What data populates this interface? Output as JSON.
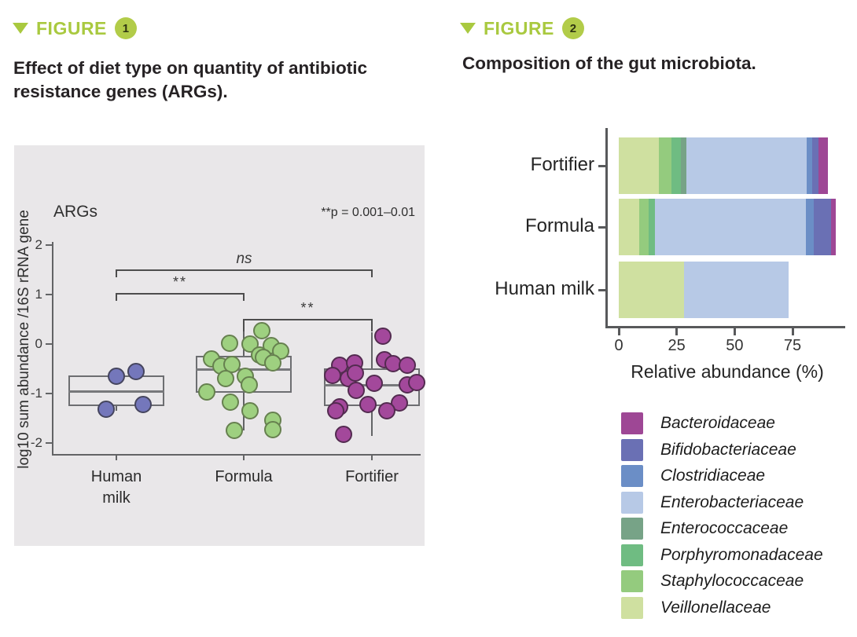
{
  "colors": {
    "accent_green": "#a9c93f",
    "panel_background": "#e9e7e9"
  },
  "figure1": {
    "header": {
      "label": "FIGURE",
      "number": "1"
    },
    "title": "Effect of diet type on quantity of antibiotic resistance genes (ARGs)."
  },
  "figure2": {
    "header": {
      "label": "FIGURE",
      "number": "2"
    },
    "title": "Composition of the gut microbiota."
  },
  "chart_data": [
    {
      "type": "box-scatter",
      "title": "ARGs",
      "ylabel": "log10 sum abundance /16S rRNA gene",
      "annotation": "**p = 0.001–0.01",
      "ylim": [
        -2.3,
        2.3
      ],
      "yticks": [
        2,
        1,
        0,
        -1,
        -2
      ],
      "groups": [
        {
          "label": "Human milk",
          "label_display": "Human\nmilk",
          "color": "#7477bb",
          "stroke": "#45455e",
          "box": {
            "q1": -1.25,
            "median": -0.95,
            "q3": -0.63,
            "whisker_low": -1.35,
            "whisker_high": -0.63
          },
          "points": [
            [
              0,
              -0.65
            ],
            [
              25,
              -0.56
            ],
            [
              -13,
              -1.32
            ],
            [
              34,
              -1.22
            ]
          ]
        },
        {
          "label": "Formula",
          "label_display": "Formula",
          "color": "#9ed080",
          "stroke": "#66804f",
          "box": {
            "q1": -0.98,
            "median": -0.51,
            "q3": -0.24,
            "whisker_low": -1.74,
            "whisker_high": 0.29
          },
          "points": [
            [
              23,
              0.27
            ],
            [
              8,
              0.0
            ],
            [
              -18,
              0.02
            ],
            [
              35,
              -0.03
            ],
            [
              20,
              -0.22
            ],
            [
              47,
              -0.14
            ],
            [
              -41,
              -0.3
            ],
            [
              -29,
              -0.44
            ],
            [
              -15,
              -0.41
            ],
            [
              25,
              -0.27
            ],
            [
              37,
              -0.38
            ],
            [
              2,
              -0.65
            ],
            [
              -23,
              -0.7
            ],
            [
              7,
              -0.83
            ],
            [
              -47,
              -0.97
            ],
            [
              -17,
              -1.17
            ],
            [
              8,
              -1.35
            ],
            [
              37,
              -1.54
            ],
            [
              37,
              -1.73
            ],
            [
              -12,
              -1.75
            ]
          ]
        },
        {
          "label": "Fortifier",
          "label_display": "Fortifier",
          "color": "#a3489b",
          "stroke": "#532b50",
          "box": {
            "q1": -1.25,
            "median": -0.83,
            "q3": -0.49,
            "whisker_low": -1.86,
            "whisker_high": 0.24
          },
          "points": [
            [
              14,
              0.16
            ],
            [
              16,
              -0.32
            ],
            [
              27,
              -0.4
            ],
            [
              45,
              -0.43
            ],
            [
              -41,
              -0.43
            ],
            [
              -22,
              -0.38
            ],
            [
              -50,
              -0.63
            ],
            [
              -30,
              -0.7
            ],
            [
              -21,
              -0.59
            ],
            [
              3,
              -0.79
            ],
            [
              -20,
              -0.94
            ],
            [
              45,
              -0.83
            ],
            [
              57,
              -0.78
            ],
            [
              -5,
              -1.22
            ],
            [
              35,
              -1.19
            ],
            [
              19,
              -1.35
            ],
            [
              -41,
              -1.27
            ],
            [
              -46,
              -1.35
            ],
            [
              -36,
              -1.83
            ]
          ]
        }
      ],
      "significance": [
        {
          "from_index": 0,
          "to_index": 2,
          "label": "ns"
        },
        {
          "from_index": 0,
          "to_index": 1,
          "label": "**"
        },
        {
          "from_index": 1,
          "to_index": 2,
          "label": "**"
        }
      ]
    },
    {
      "type": "stacked-bar-horizontal",
      "categories": [
        "Fortifier",
        "Formula",
        "Human milk"
      ],
      "xlabel": "Relative abundance (%)",
      "xticks": [
        0,
        25,
        50,
        75
      ],
      "xlim": [
        0,
        100
      ],
      "series": [
        {
          "name": "Veillonellaceae",
          "color": "#cfe0a0",
          "values": [
            17.3,
            8.8,
            28.2
          ]
        },
        {
          "name": "Staphylococcaceae",
          "color": "#94cb7e",
          "values": [
            5.4,
            4.1,
            0
          ]
        },
        {
          "name": "Porphyromonadaceae",
          "color": "#6fbc82",
          "values": [
            4.1,
            2.7,
            0
          ]
        },
        {
          "name": "Enterococcaceae",
          "color": "#77a387",
          "values": [
            2.4,
            0,
            0
          ]
        },
        {
          "name": "Enterobacteriaceae",
          "color": "#b7c9e6",
          "values": [
            51.8,
            65.1,
            45.1
          ]
        },
        {
          "name": "Clostridiaceae",
          "color": "#6b8ec6",
          "values": [
            2.4,
            3.4,
            0
          ]
        },
        {
          "name": "Bifidobacteriaceae",
          "color": "#6a70b4",
          "values": [
            2.8,
            7.5,
            0
          ]
        },
        {
          "name": "Bacteroidaceae",
          "color": "#9e4795",
          "values": [
            4.2,
            2.0,
            0
          ]
        }
      ],
      "legend_order": [
        "Bacteroidaceae",
        "Bifidobacteriaceae",
        "Clostridiaceae",
        "Enterobacteriaceae",
        "Enterococcaceae",
        "Porphyromonadaceae",
        "Staphylococcaceae",
        "Veillonellaceae"
      ],
      "legend_position": "bottom-right"
    }
  ]
}
